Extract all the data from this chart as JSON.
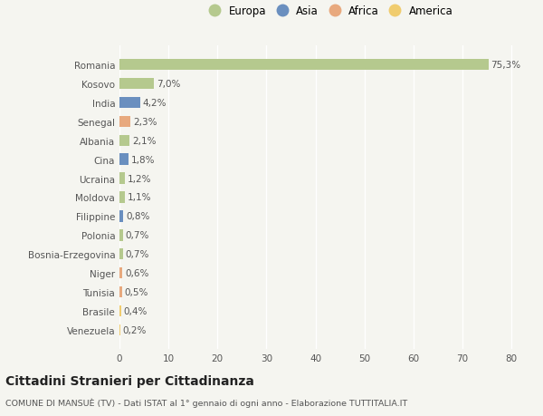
{
  "countries": [
    "Romania",
    "Kosovo",
    "India",
    "Senegal",
    "Albania",
    "Cina",
    "Ucraina",
    "Moldova",
    "Filippine",
    "Polonia",
    "Bosnia-Erzegovina",
    "Niger",
    "Tunisia",
    "Brasile",
    "Venezuela"
  ],
  "values": [
    75.3,
    7.0,
    4.2,
    2.3,
    2.1,
    1.8,
    1.2,
    1.1,
    0.8,
    0.7,
    0.7,
    0.6,
    0.5,
    0.4,
    0.2
  ],
  "labels": [
    "75,3%",
    "7,0%",
    "4,2%",
    "2,3%",
    "2,1%",
    "1,8%",
    "1,2%",
    "1,1%",
    "0,8%",
    "0,7%",
    "0,7%",
    "0,6%",
    "0,5%",
    "0,4%",
    "0,2%"
  ],
  "continents": [
    "Europa",
    "Europa",
    "Asia",
    "Africa",
    "Europa",
    "Asia",
    "Europa",
    "Europa",
    "Asia",
    "Europa",
    "Europa",
    "Africa",
    "Africa",
    "America",
    "America"
  ],
  "colors": {
    "Europa": "#b5c98e",
    "Asia": "#6a8fbf",
    "Africa": "#e8a97e",
    "America": "#f0cc6e"
  },
  "legend_labels": [
    "Europa",
    "Asia",
    "Africa",
    "America"
  ],
  "legend_colors": [
    "#b5c98e",
    "#6a8fbf",
    "#e8a97e",
    "#f0cc6e"
  ],
  "title": "Cittadini Stranieri per Cittadinanza",
  "subtitle": "COMUNE DI MANSUÈ (TV) - Dati ISTAT al 1° gennaio di ogni anno - Elaborazione TUTTITALIA.IT",
  "xlim": [
    0,
    82
  ],
  "xticks": [
    0,
    10,
    20,
    30,
    40,
    50,
    60,
    70,
    80
  ],
  "background_color": "#f5f5f0",
  "grid_color": "#ffffff"
}
